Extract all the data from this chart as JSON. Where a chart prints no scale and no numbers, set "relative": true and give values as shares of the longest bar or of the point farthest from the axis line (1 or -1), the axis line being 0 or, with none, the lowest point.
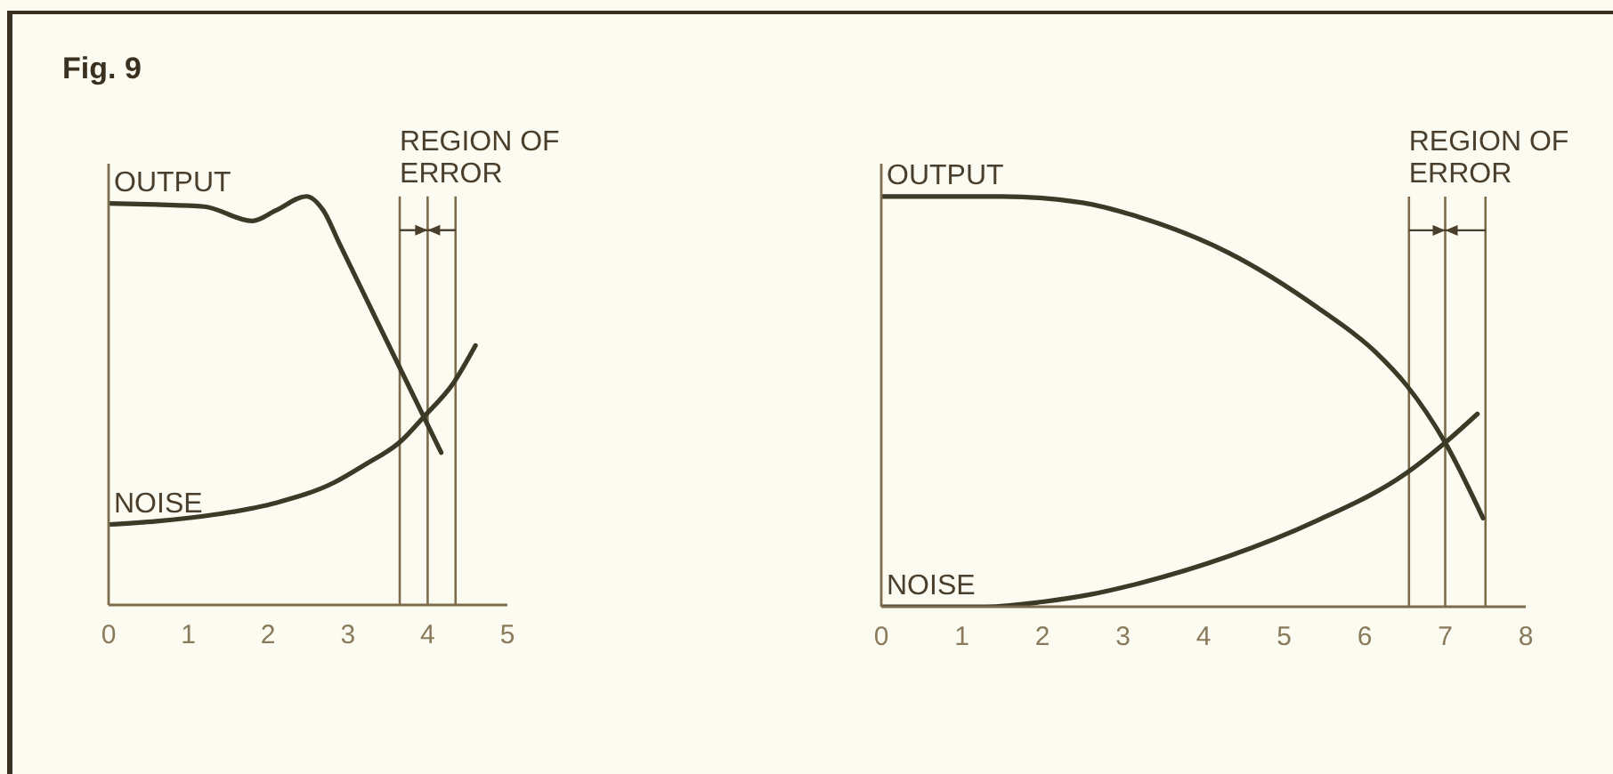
{
  "chart_data": [
    {
      "type": "line",
      "title": "Fig. 9",
      "relative": true,
      "xlim": [
        0,
        5
      ],
      "xticks": [
        0,
        1,
        2,
        3,
        4,
        5
      ],
      "tick_labels": "x",
      "marker": "none",
      "series": [
        {
          "name": "OUTPUT",
          "color": "#3b3a27",
          "x": [
            0,
            0.6,
            1.2,
            1.8,
            2.1,
            2.48,
            2.69,
            2.9,
            3.43,
            4.17
          ],
          "values": [
            0.983,
            0.98,
            0.975,
            0.94,
            0.966,
            1.0,
            0.966,
            0.882,
            0.669,
            0.373
          ]
        },
        {
          "name": "NOISE",
          "color": "#3b3a27",
          "x": [
            0,
            0.6,
            1.36,
            2.1,
            2.83,
            3.21,
            3.66,
            3.95,
            4.33,
            4.6
          ],
          "values": [
            0.197,
            0.205,
            0.222,
            0.25,
            0.3,
            0.343,
            0.4,
            0.46,
            0.545,
            0.635
          ]
        }
      ],
      "ref_lines": [
        {
          "axis": "x",
          "value": 3.65,
          "label": "REGION OF ERROR"
        },
        {
          "axis": "x",
          "value": 4
        },
        {
          "axis": "x",
          "value": 4.35
        }
      ]
    },
    {
      "type": "line",
      "relative": true,
      "xlim": [
        0,
        8
      ],
      "xticks": [
        0,
        1,
        2,
        3,
        4,
        5,
        6,
        7,
        8
      ],
      "tick_labels": "x",
      "marker": "none",
      "series": [
        {
          "name": "OUTPUT",
          "color": "#3b3a27",
          "x": [
            0,
            1.5,
            2.5,
            3.2,
            4.31,
            5.41,
            6.14,
            6.52,
            7.0,
            7.47
          ],
          "values": [
            1.0,
            1.0,
            0.985,
            0.95,
            0.863,
            0.73,
            0.62,
            0.54,
            0.4,
            0.216
          ]
        },
        {
          "name": "NOISE",
          "color": "#3b3a27",
          "x": [
            0,
            1.3,
            2,
            2.6,
            3.2,
            4.31,
            5.41,
            6.52,
            7.0,
            7.4
          ],
          "values": [
            0,
            0,
            0.012,
            0.03,
            0.057,
            0.123,
            0.21,
            0.326,
            0.4,
            0.47
          ]
        }
      ],
      "ref_lines": [
        {
          "axis": "x",
          "value": 6.55,
          "label": "REGION OF ERROR"
        },
        {
          "axis": "x",
          "value": 7
        },
        {
          "axis": "x",
          "value": 7.5
        }
      ]
    }
  ]
}
